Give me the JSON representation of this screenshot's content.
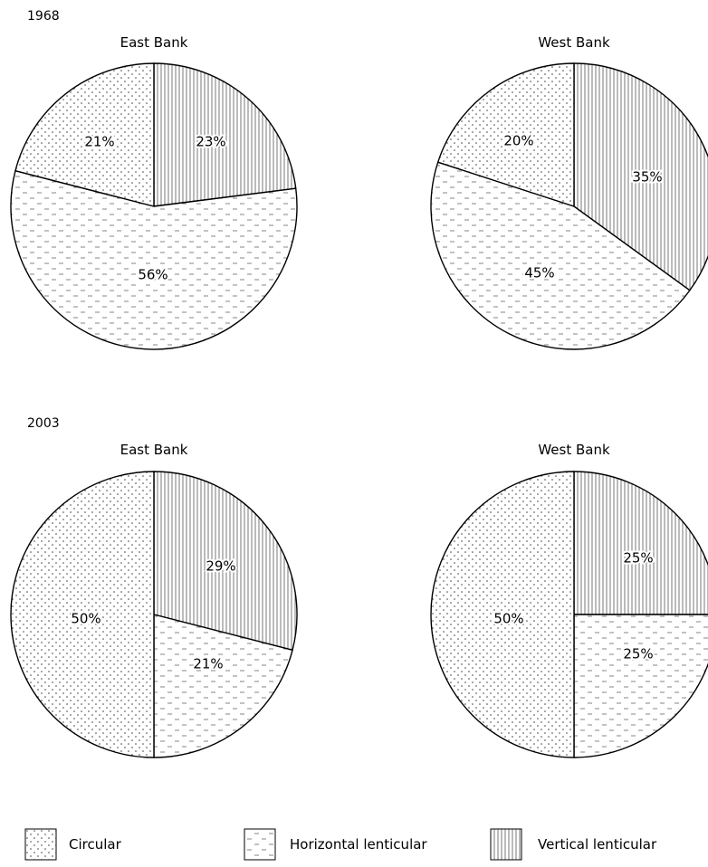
{
  "legend": [
    {
      "key": "circular",
      "label": "Circular"
    },
    {
      "key": "horizontal",
      "label": "Horizontal lenticular"
    },
    {
      "key": "vertical",
      "label": "Vertical lenticular"
    }
  ],
  "chart_data": [
    {
      "type": "pie",
      "year": "1968",
      "title": "East Bank",
      "slices": [
        {
          "key": "vertical",
          "value": 23,
          "label": "23%"
        },
        {
          "key": "horizontal",
          "value": 56,
          "label": "56%"
        },
        {
          "key": "circular",
          "value": 21,
          "label": "21%"
        }
      ]
    },
    {
      "type": "pie",
      "year": "",
      "title": "West Bank",
      "slices": [
        {
          "key": "vertical",
          "value": 35,
          "label": "35%"
        },
        {
          "key": "horizontal",
          "value": 45,
          "label": "45%"
        },
        {
          "key": "circular",
          "value": 20,
          "label": "20%"
        }
      ]
    },
    {
      "type": "pie",
      "year": "2003",
      "title": "East Bank",
      "slices": [
        {
          "key": "vertical",
          "value": 29,
          "label": "29%"
        },
        {
          "key": "horizontal",
          "value": 21,
          "label": "21%"
        },
        {
          "key": "circular",
          "value": 50,
          "label": "50%"
        }
      ]
    },
    {
      "type": "pie",
      "year": "",
      "title": "West Bank",
      "slices": [
        {
          "key": "vertical",
          "value": 25,
          "label": "25%"
        },
        {
          "key": "horizontal",
          "value": 25,
          "label": "25%"
        },
        {
          "key": "circular",
          "value": 50,
          "label": "50%"
        }
      ]
    }
  ]
}
